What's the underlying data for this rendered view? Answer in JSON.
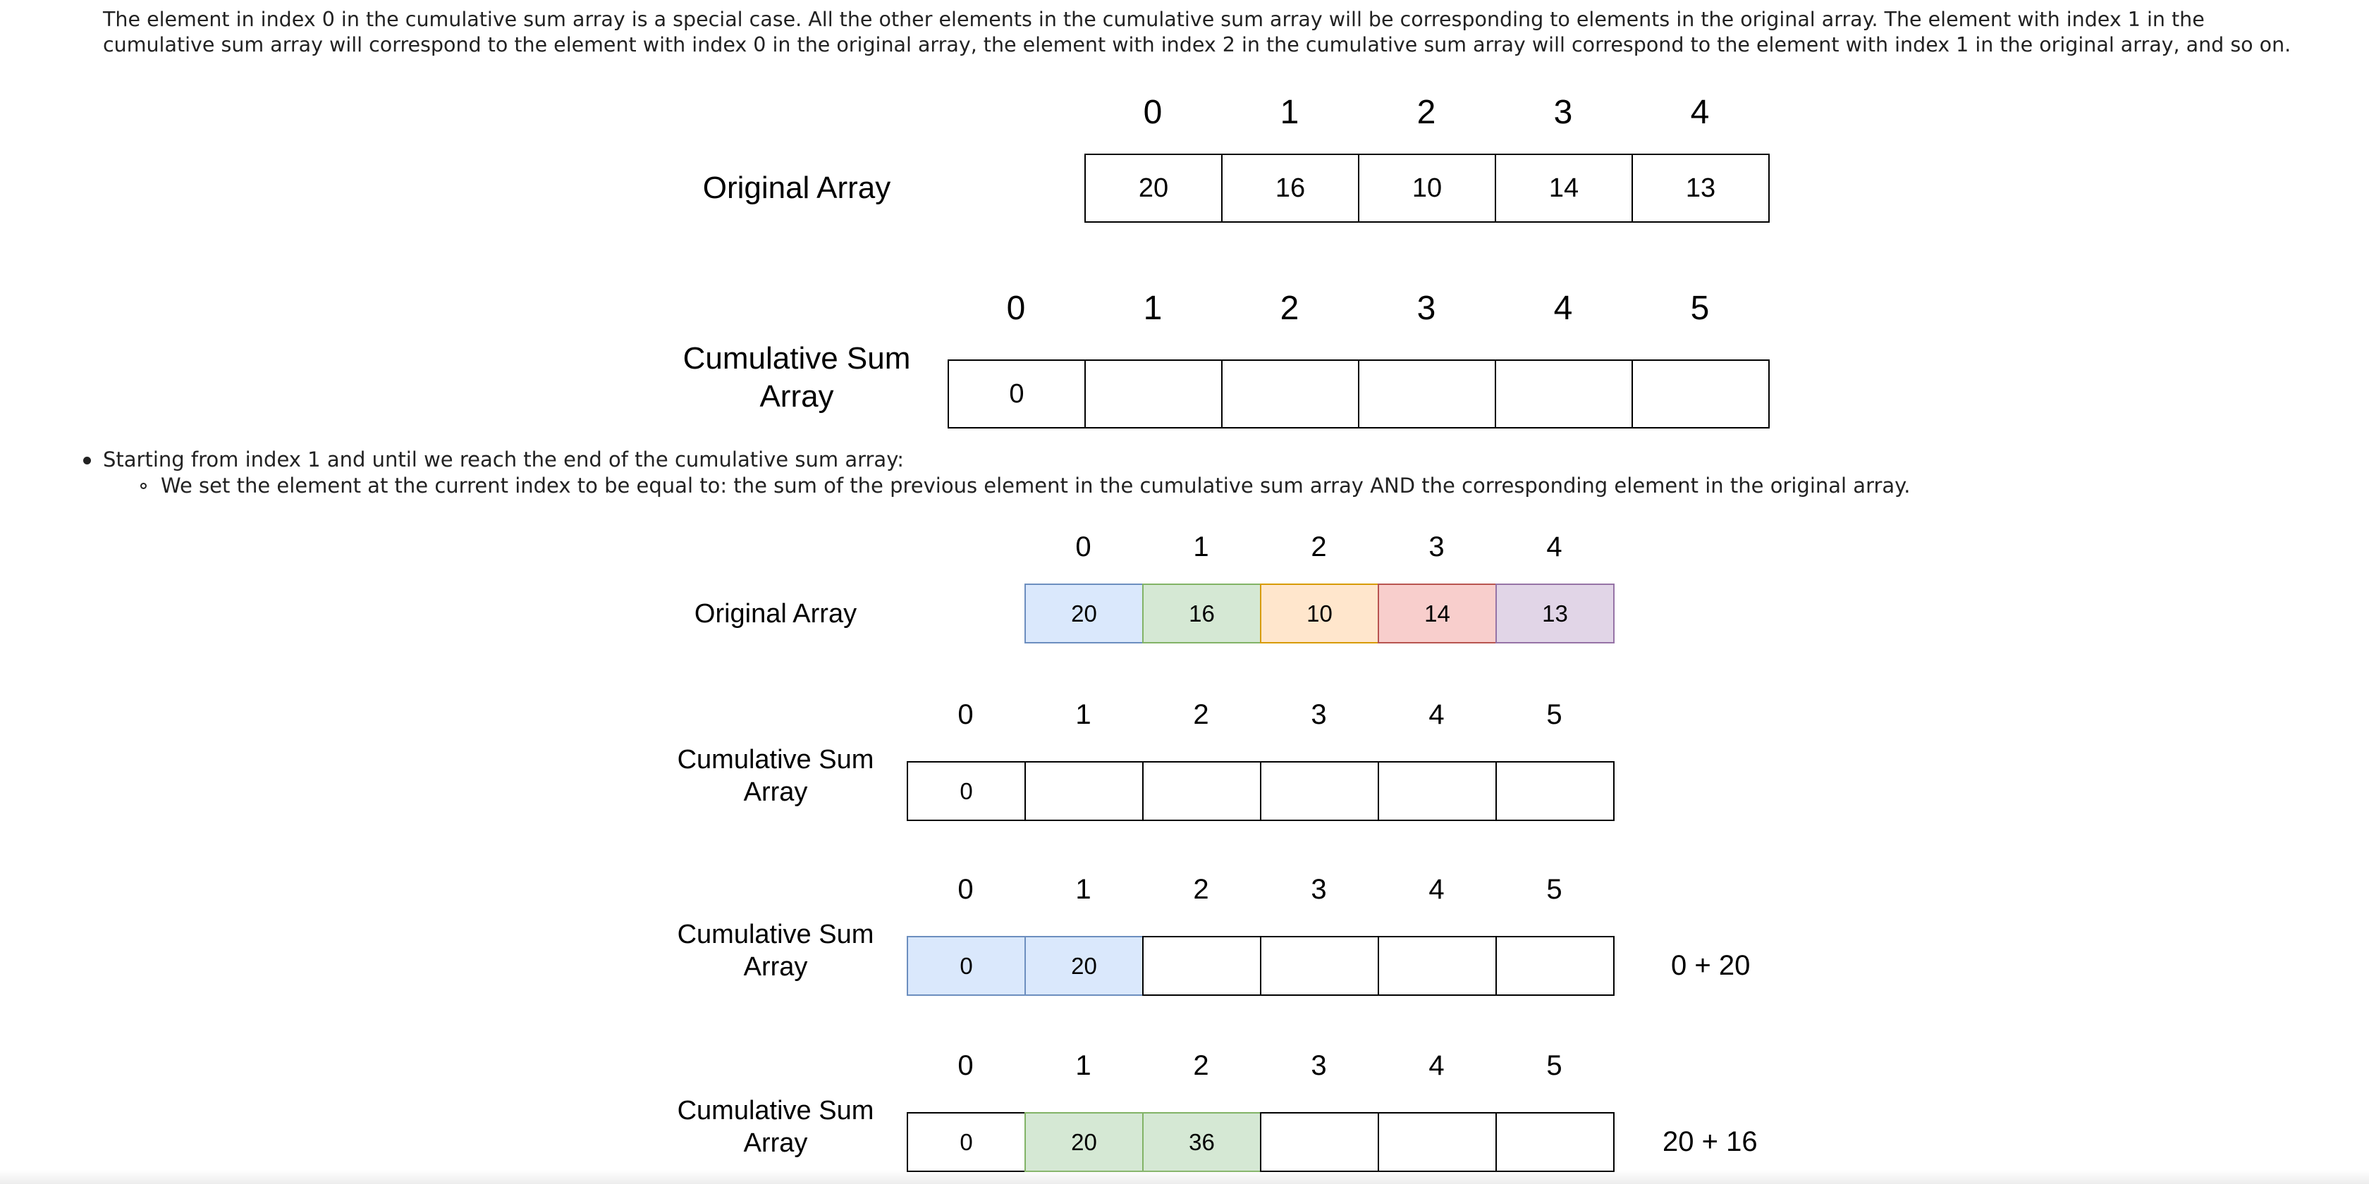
{
  "intro_paragraph": "The element in index 0 in the cumulative sum array is a special case. All the other elements in the cumulative sum array will be corresponding to elements in the original array. The element with index 1 in the cumulative sum array will correspond to the element with index 0 in the original array, the element with index 2 in the cumulative sum array will correspond to the element with index 1 in the original array, and so on.",
  "figure1": {
    "original": {
      "label": "Original Array",
      "indices": [
        "0",
        "1",
        "2",
        "3",
        "4"
      ],
      "values": [
        "20",
        "16",
        "10",
        "14",
        "13"
      ]
    },
    "cumulative": {
      "label_line1": "Cumulative Sum",
      "label_line2": "Array",
      "indices": [
        "0",
        "1",
        "2",
        "3",
        "4",
        "5"
      ],
      "values": [
        "0",
        "",
        "",
        "",
        "",
        ""
      ]
    }
  },
  "bullets": {
    "level1": "Starting from index 1 and until we reach the end of the cumulative sum array:",
    "level2": "We set the element at the current index to be equal to: the sum of the previous element in the cumulative sum array AND the corresponding element in the original array."
  },
  "figure2": {
    "original": {
      "label": "Original Array",
      "indices": [
        "0",
        "1",
        "2",
        "3",
        "4"
      ],
      "values": [
        "20",
        "16",
        "10",
        "14",
        "13"
      ],
      "fills": [
        "#dae8fc",
        "#d5e8d4",
        "#ffe6cc",
        "#f8cecc",
        "#e1d5e7"
      ],
      "strokes": [
        "#6c8ebf",
        "#82b366",
        "#d79b00",
        "#b85450",
        "#9673a6"
      ]
    },
    "cumulative_rows": [
      {
        "label_line1": "Cumulative Sum",
        "label_line2": "Array",
        "indices": [
          "0",
          "1",
          "2",
          "3",
          "4",
          "5"
        ],
        "values": [
          "0",
          "",
          "",
          "",
          "",
          ""
        ],
        "highlight_fill": "#ffffff",
        "highlight_stroke": "#000000",
        "highlight_cells": [],
        "expression": ""
      },
      {
        "label_line1": "Cumulative Sum",
        "label_line2": "Array",
        "indices": [
          "0",
          "1",
          "2",
          "3",
          "4",
          "5"
        ],
        "values": [
          "0",
          "20",
          "",
          "",
          "",
          ""
        ],
        "highlight_fill": "#dae8fc",
        "highlight_stroke": "#6c8ebf",
        "highlight_cells": [
          0,
          1
        ],
        "expression": "0 + 20"
      },
      {
        "label_line1": "Cumulative Sum",
        "label_line2": "Array",
        "indices": [
          "0",
          "1",
          "2",
          "3",
          "4",
          "5"
        ],
        "values": [
          "0",
          "20",
          "36",
          "",
          "",
          ""
        ],
        "highlight_fill": "#d5e8d4",
        "highlight_stroke": "#82b366",
        "highlight_cells": [
          1,
          2
        ],
        "expression": "20 + 16"
      }
    ]
  }
}
